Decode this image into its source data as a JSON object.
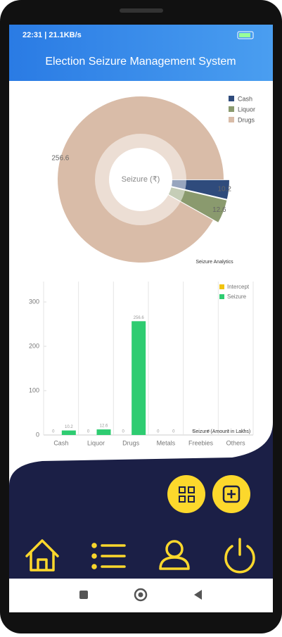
{
  "status_bar": {
    "time": "22:31 | 21.1KB/s"
  },
  "app_bar": {
    "title": "Election Seizure Management System"
  },
  "chart_data": [
    {
      "type": "pie",
      "center_label": "Seizure (₹)",
      "caption": "Seizure Analytics",
      "categories": [
        "Cash",
        "Liquor",
        "Drugs"
      ],
      "values": [
        10.2,
        12.6,
        256.6
      ],
      "colors": [
        "#2f4b7c",
        "#8a9a6e",
        "#d9bca8"
      ]
    },
    {
      "type": "bar",
      "caption": "Seizure (Amount in Lakhs)",
      "categories": [
        "Cash",
        "Liquor",
        "Drugs",
        "Metals",
        "Freebies",
        "Others"
      ],
      "series": [
        {
          "name": "Intercept",
          "color": "#f1c40f",
          "values": [
            0,
            0,
            0,
            0,
            0,
            0
          ]
        },
        {
          "name": "Seizure",
          "color": "#2ecc71",
          "values": [
            10.2,
            12.6,
            256.6,
            0,
            0,
            0
          ]
        }
      ],
      "ylim": [
        0,
        346
      ],
      "yticks": [
        0,
        100,
        200,
        300
      ],
      "grid": true
    }
  ]
}
